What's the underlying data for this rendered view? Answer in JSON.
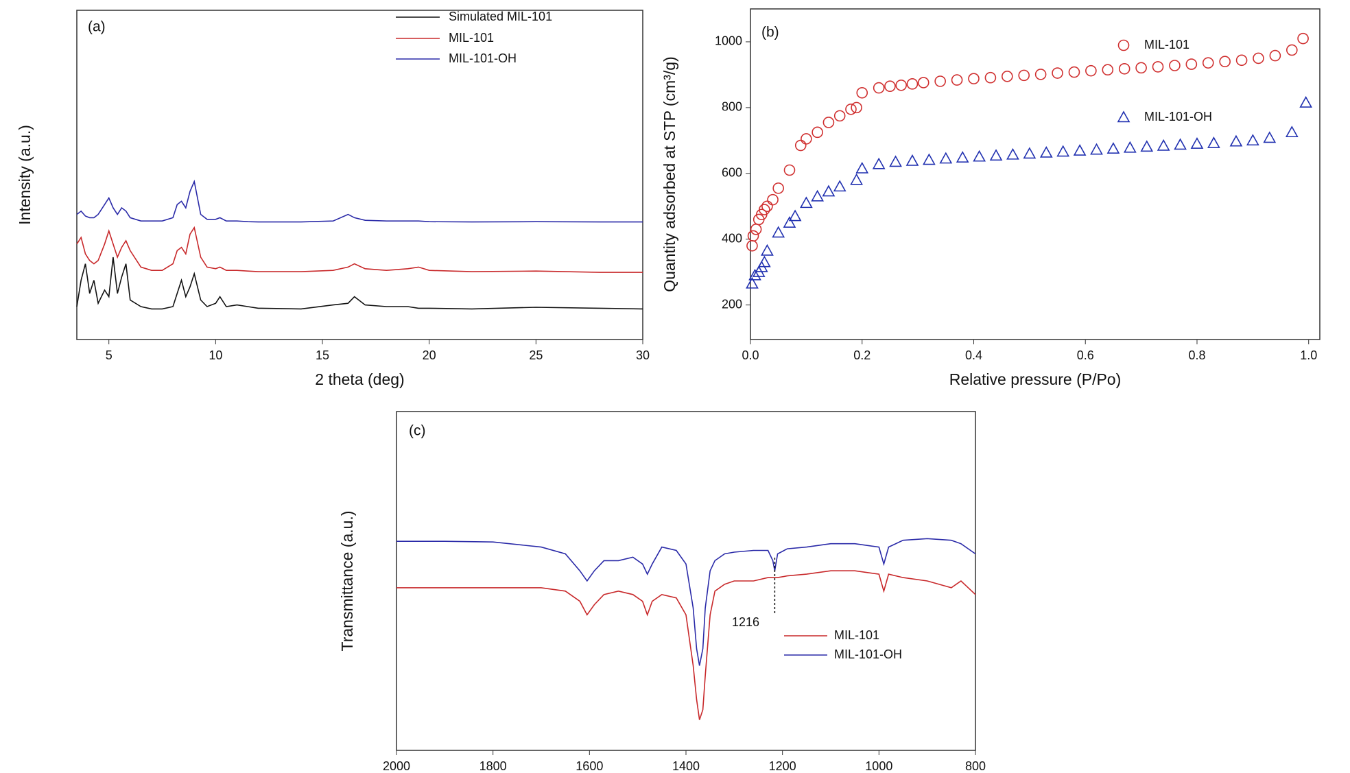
{
  "chart_data": [
    {
      "type": "line",
      "panel_label": "(a)",
      "xlabel": "2 theta (deg)",
      "ylabel": "Intensity (a.u.)",
      "xlim": [
        3.5,
        30
      ],
      "xticks": [
        5,
        10,
        15,
        20,
        25,
        30
      ],
      "ylim": [
        0,
        100
      ],
      "x": [
        3.5,
        3.7,
        3.9,
        4.1,
        4.3,
        4.5,
        4.8,
        5.0,
        5.2,
        5.4,
        5.6,
        5.8,
        6.0,
        6.5,
        7.0,
        7.5,
        8.0,
        8.2,
        8.4,
        8.6,
        8.8,
        9.0,
        9.3,
        9.6,
        10.0,
        10.2,
        10.5,
        11,
        11.5,
        12,
        14,
        15.5,
        16.2,
        16.5,
        17,
        18,
        19,
        19.5,
        20,
        22,
        25,
        28,
        30
      ],
      "series": [
        {
          "name": "Simulated MIL-101",
          "color": "#111111",
          "values": [
            10,
            18,
            23,
            14,
            18,
            11,
            15,
            13,
            25,
            14,
            19,
            23,
            12,
            10,
            9.3,
            9.3,
            10,
            14,
            18,
            13,
            16,
            20,
            12,
            10,
            11,
            13,
            10,
            10.5,
            10,
            9.5,
            9.3,
            10.5,
            11,
            13,
            10.5,
            10,
            10,
            9.5,
            9.5,
            9.3,
            9.8,
            9.5,
            9.3
          ]
        },
        {
          "name": "MIL-101",
          "color": "#c8282a",
          "values": [
            29,
            31,
            26,
            24,
            23,
            24,
            29,
            33,
            29,
            25,
            28,
            30,
            27,
            22,
            21,
            21,
            23,
            27,
            28,
            26,
            32,
            34,
            25,
            22,
            21.5,
            22,
            21,
            21,
            20.8,
            20.6,
            20.6,
            21,
            22,
            23,
            21.5,
            21,
            21.5,
            22,
            21,
            20.6,
            20.8,
            20.4,
            20.4
          ]
        },
        {
          "name": "MIL-101-OH",
          "color": "#2a2aa8",
          "values": [
            38,
            39,
            37.5,
            37,
            37,
            38,
            41,
            43,
            40,
            38,
            40,
            39,
            37,
            36,
            36,
            36,
            37,
            41,
            42,
            40,
            45,
            48,
            38,
            36.5,
            36.5,
            37,
            36,
            36,
            35.8,
            35.7,
            35.7,
            36,
            38,
            37,
            36.2,
            36,
            36,
            36,
            35.8,
            35.7,
            35.8,
            35.7,
            35.7
          ]
        }
      ]
    },
    {
      "type": "scatter",
      "panel_label": "(b)",
      "xlabel": "Relative pressure (P/Po)",
      "ylabel": "Quantity adsorbed at STP (cm³/g)",
      "xlim": [
        0,
        1.02
      ],
      "xticks": [
        {
          "value": 0,
          "label": "0.0"
        },
        0.2,
        0.4,
        0.6,
        0.8,
        {
          "value": 1,
          "label": "1.0"
        }
      ],
      "ylim": [
        95,
        1100
      ],
      "yticks": [
        200,
        400,
        600,
        800,
        1000
      ],
      "series": [
        {
          "name": "MIL-101",
          "color": "#d03030",
          "marker": "circle",
          "x": [
            0.003,
            0.005,
            0.01,
            0.015,
            0.02,
            0.025,
            0.03,
            0.04,
            0.05,
            0.07,
            0.09,
            0.1,
            0.12,
            0.14,
            0.16,
            0.18,
            0.19,
            0.2,
            0.23,
            0.25,
            0.27,
            0.29,
            0.31,
            0.34,
            0.37,
            0.4,
            0.43,
            0.46,
            0.49,
            0.52,
            0.55,
            0.58,
            0.61,
            0.64,
            0.67,
            0.7,
            0.73,
            0.76,
            0.79,
            0.82,
            0.85,
            0.88,
            0.91,
            0.94,
            0.97,
            0.99
          ],
          "values": [
            380,
            410,
            430,
            460,
            475,
            490,
            500,
            520,
            555,
            610,
            685,
            705,
            725,
            755,
            775,
            795,
            800,
            845,
            860,
            865,
            868,
            872,
            876,
            880,
            884,
            888,
            891,
            895,
            898,
            901,
            905,
            908,
            912,
            915,
            918,
            921,
            924,
            928,
            932,
            936,
            940,
            944,
            950,
            958,
            975,
            1010
          ]
        },
        {
          "name": "MIL-101-OH",
          "color": "#2030b0",
          "marker": "triangle",
          "x": [
            0.003,
            0.008,
            0.015,
            0.02,
            0.025,
            0.03,
            0.05,
            0.07,
            0.08,
            0.1,
            0.12,
            0.14,
            0.16,
            0.19,
            0.2,
            0.23,
            0.26,
            0.29,
            0.32,
            0.35,
            0.38,
            0.41,
            0.44,
            0.47,
            0.5,
            0.53,
            0.56,
            0.59,
            0.62,
            0.65,
            0.68,
            0.71,
            0.74,
            0.77,
            0.8,
            0.83,
            0.87,
            0.9,
            0.93,
            0.97,
            0.995
          ],
          "values": [
            265,
            290,
            300,
            315,
            330,
            365,
            420,
            450,
            470,
            510,
            530,
            545,
            560,
            580,
            615,
            628,
            635,
            638,
            641,
            645,
            648,
            651,
            654,
            657,
            660,
            663,
            666,
            669,
            672,
            675,
            678,
            681,
            684,
            687,
            690,
            692,
            697,
            700,
            708,
            725,
            815
          ]
        }
      ]
    },
    {
      "type": "line",
      "panel_label": "(c)",
      "ylabel": "Transmittance (a.u.)",
      "xlim": [
        2000,
        800
      ],
      "xticks": [
        2000,
        1800,
        1600,
        1400,
        1200,
        1000,
        800
      ],
      "ylim": [
        0,
        100
      ],
      "annotations": [
        {
          "text": "1216",
          "x": 1216
        }
      ],
      "x": [
        2000,
        1900,
        1800,
        1700,
        1650,
        1620,
        1605,
        1590,
        1570,
        1540,
        1510,
        1490,
        1480,
        1470,
        1450,
        1420,
        1400,
        1385,
        1378,
        1372,
        1365,
        1360,
        1350,
        1340,
        1320,
        1300,
        1260,
        1230,
        1220,
        1216,
        1210,
        1190,
        1150,
        1100,
        1050,
        1000,
        990,
        980,
        950,
        900,
        850,
        830,
        800
      ],
      "series": [
        {
          "name": "MIL-101",
          "color": "#c8282a",
          "values": [
            48,
            48,
            48,
            48,
            47,
            44,
            40,
            43,
            46,
            47,
            46,
            44,
            40,
            44,
            46,
            45,
            40,
            25,
            15,
            9,
            12,
            22,
            40,
            47,
            49,
            50,
            50,
            51,
            51,
            51,
            51,
            51.5,
            52,
            53,
            53,
            52,
            47,
            52,
            51,
            50,
            48,
            50,
            46
          ]
        },
        {
          "name": "MIL-101-OH",
          "color": "#2a2aa8",
          "values": [
            61.7,
            61.7,
            61.5,
            60,
            58,
            53,
            50,
            53,
            56,
            56,
            57,
            55,
            52,
            55,
            60,
            59,
            55,
            42,
            30,
            25,
            30,
            42,
            53,
            56,
            58,
            58.5,
            59,
            59,
            56,
            53,
            58,
            59.5,
            60,
            61,
            61,
            60,
            55,
            60,
            62,
            62.5,
            62,
            61,
            58
          ]
        }
      ]
    }
  ]
}
